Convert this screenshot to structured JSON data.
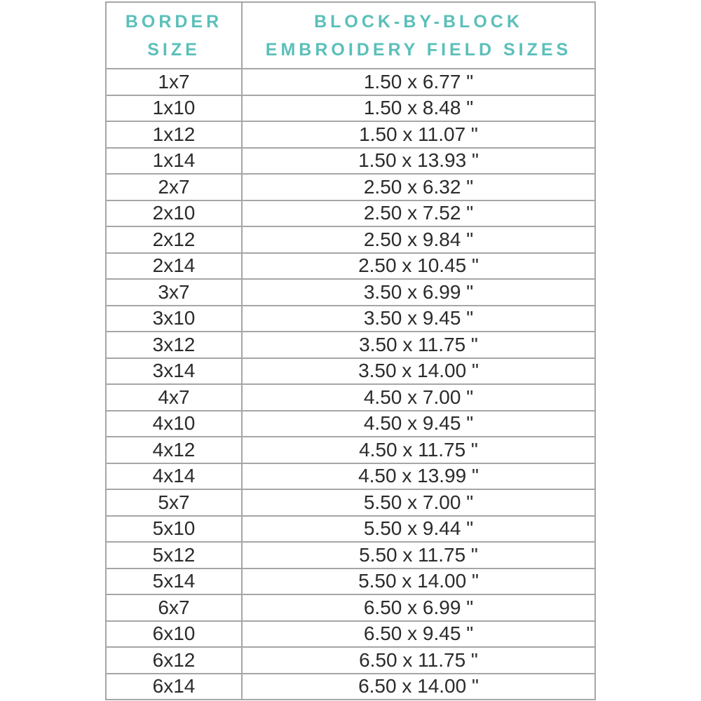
{
  "chart_data": {
    "type": "table",
    "title": "",
    "columns": [
      "BORDER SIZE",
      "BLOCK-BY-BLOCK EMBROIDERY FIELD SIZES"
    ],
    "rows": [
      [
        "1x7",
        "1.50 x 6.77 \""
      ],
      [
        "1x10",
        "1.50 x 8.48 \""
      ],
      [
        "1x12",
        "1.50 x 11.07 \""
      ],
      [
        "1x14",
        "1.50 x 13.93 \""
      ],
      [
        "2x7",
        "2.50 x 6.32 \""
      ],
      [
        "2x10",
        "2.50 x 7.52 \""
      ],
      [
        "2x12",
        "2.50 x 9.84 \""
      ],
      [
        "2x14",
        "2.50 x 10.45 \""
      ],
      [
        "3x7",
        "3.50 x 6.99 \""
      ],
      [
        "3x10",
        "3.50 x 9.45 \""
      ],
      [
        "3x12",
        "3.50 x 11.75 \""
      ],
      [
        "3x14",
        "3.50 x 14.00 \""
      ],
      [
        "4x7",
        "4.50 x 7.00 \""
      ],
      [
        "4x10",
        "4.50 x 9.45 \""
      ],
      [
        "4x12",
        "4.50 x 11.75 \""
      ],
      [
        "4x14",
        "4.50 x 13.99 \""
      ],
      [
        "5x7",
        "5.50 x 7.00 \""
      ],
      [
        "5x10",
        "5.50 x 9.44 \""
      ],
      [
        "5x12",
        "5.50 x 11.75 \""
      ],
      [
        "5x14",
        "5.50 x 14.00 \""
      ],
      [
        "6x7",
        "6.50 x 6.99 \""
      ],
      [
        "6x10",
        "6.50 x 9.45 \""
      ],
      [
        "6x12",
        "6.50 x 11.75 \""
      ],
      [
        "6x14",
        "6.50 x 14.00 \""
      ]
    ],
    "layout": {
      "grid": "on",
      "header_position": "top"
    }
  },
  "header": {
    "col1_lines": [
      "BORDER",
      "SIZE"
    ],
    "col2_lines": [
      "BLOCK-BY-BLOCK",
      "EMBROIDERY FIELD SIZES"
    ]
  },
  "colors": {
    "header_text": "#5bbfba",
    "body_text": "#2b2b2b",
    "grid_line": "#a6a6a6",
    "background": "#ffffff"
  }
}
